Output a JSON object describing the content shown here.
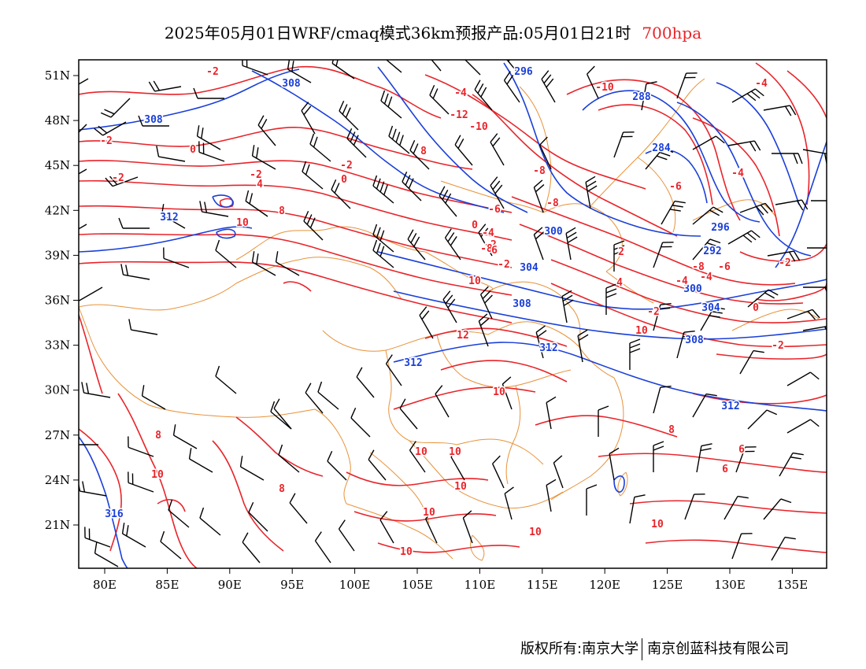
{
  "title": {
    "main": "2025年05月01日WRF/cmaq模式36km预报产品:05月01日21时",
    "level": "700hpa"
  },
  "colors": {
    "temperature": "#e8242a",
    "height": "#1a3fd8",
    "boundary": "#e8923a",
    "wind": "#000000",
    "level": "#e8242a"
  },
  "axes": {
    "longitude_ticks": [
      "80E",
      "85E",
      "90E",
      "95E",
      "100E",
      "105E",
      "110E",
      "115E",
      "120E",
      "125E",
      "130E",
      "135E"
    ],
    "latitude_ticks": [
      "51N",
      "48N",
      "45N",
      "42N",
      "39N",
      "36N",
      "33N",
      "30N",
      "27N",
      "24N",
      "21N"
    ]
  },
  "height_labels": [
    "308",
    "308",
    "312",
    "296",
    "288",
    "284",
    "300",
    "296",
    "292",
    "304",
    "308",
    "300",
    "304",
    "308",
    "312",
    "312",
    "312",
    "316"
  ],
  "temperature_labels": [
    "-2",
    "-2",
    "0",
    "-2",
    "-2",
    "-2",
    "0",
    "4",
    "8",
    "10",
    "-4",
    "-8",
    "-12",
    "-10",
    "-10",
    "-8",
    "-6",
    "-4",
    "-2",
    "0",
    "-2",
    "-6",
    "-4",
    "4",
    "-4",
    "-8",
    "-6",
    "-4",
    "-2",
    "-8",
    "-6",
    "-2",
    "0",
    "-2",
    "2",
    "4",
    "6",
    "8",
    "10",
    "10",
    "12",
    "10",
    "8",
    "10",
    "10",
    "8",
    "10",
    "10",
    "10",
    "10",
    "10",
    "8",
    "6",
    "6",
    "10"
  ],
  "footer": {
    "copyright": "版权所有:南京大学",
    "company": "南京创蓝科技有限公司"
  }
}
